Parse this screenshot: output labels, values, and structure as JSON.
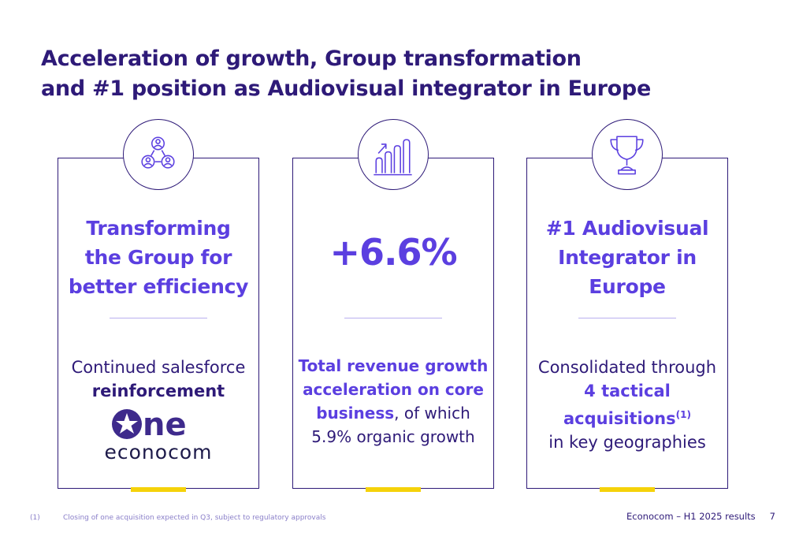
{
  "title": {
    "line1": "Acceleration of growth, Group transformation",
    "line2": "and #1 position as Audiovisual integrator in Europe"
  },
  "cards": [
    {
      "icon": "people-network-icon",
      "heading": [
        "Transforming",
        "the Group for",
        "better efficiency"
      ],
      "body_line1": "Continued salesforce",
      "body_bold": "reinforcement",
      "logo_text": "econocom",
      "logo_mark_text": "ne"
    },
    {
      "icon": "growth-chart-icon",
      "big_value": "+6.6%",
      "body_bold1": "Total revenue growth",
      "body_bold2": "acceleration on core",
      "body_bold3": "business",
      "body_rest3": ", of which",
      "body_line4": "5.9% organic growth"
    },
    {
      "icon": "trophy-icon",
      "heading": [
        "#1 Audiovisual",
        "Integrator in",
        "Europe"
      ],
      "body_line1": "Consolidated through",
      "body_bold1": "4 tactical",
      "body_bold2": "acquisitions",
      "body_sup": "(1)",
      "body_line4": "in key geographies"
    }
  ],
  "footnote": {
    "number": "(1)",
    "text": "Closing of one acquisition expected in Q3, subject to regulatory approvals"
  },
  "footer": {
    "label": "Econocom – H1 2025 results",
    "page": "7"
  },
  "colors": {
    "primary_dark": "#2e1a78",
    "accent_purple": "#5b3fe0",
    "accent_yellow": "#f5d20a"
  }
}
